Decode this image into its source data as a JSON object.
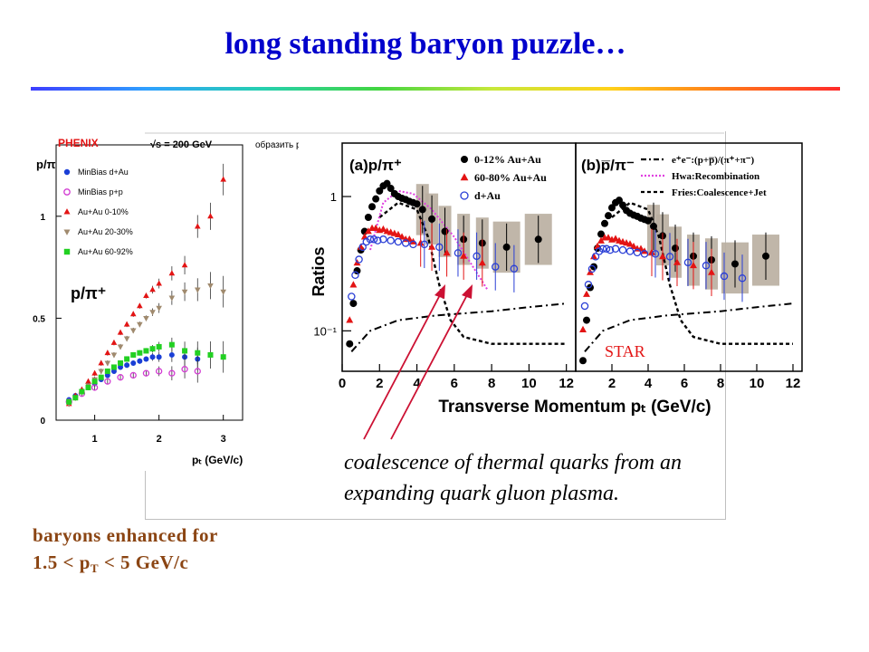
{
  "slide": {
    "title": "long standing baryon puzzle…",
    "caption_line1": "coalescence of thermal quarks from an",
    "caption_line2": "expanding quark gluon plasma.",
    "conclusion_line1": "baryons enhanced for",
    "conclusion_line2_a": "1.5 < p",
    "conclusion_line2_sub": "T",
    "conclusion_line2_b": " <  5 GeV/c",
    "overlay_text": "√s = 200 GeV",
    "overlay_fragment": "образить р"
  },
  "chart_data": [
    {
      "type": "scatter",
      "experiment": "PHENIX",
      "ylabel": "p/π",
      "xlabel": "pₜ (GeV/c)",
      "annotation": "p/π⁺",
      "xlim": [
        0.4,
        3.3
      ],
      "ylim": [
        0,
        1.35
      ],
      "xticks": [
        1,
        2,
        3
      ],
      "yticks": [
        0,
        0.5,
        1
      ],
      "ytick_labels": [
        "0",
        "0.5",
        "1"
      ],
      "legend_position": "top-left",
      "series": [
        {
          "name": "MinBias d+Au",
          "color": "#1a3fd6",
          "marker": "circle",
          "x": [
            0.6,
            0.7,
            0.8,
            0.9,
            1.0,
            1.1,
            1.2,
            1.3,
            1.4,
            1.5,
            1.6,
            1.7,
            1.8,
            1.9,
            2.0,
            2.2,
            2.4,
            2.6
          ],
          "y": [
            0.1,
            0.12,
            0.14,
            0.16,
            0.18,
            0.2,
            0.22,
            0.24,
            0.26,
            0.27,
            0.28,
            0.29,
            0.3,
            0.31,
            0.31,
            0.32,
            0.31,
            0.3
          ]
        },
        {
          "name": "MinBias p+p",
          "color": "#d23bd2",
          "marker": "open-circle",
          "x": [
            0.6,
            0.8,
            1.0,
            1.2,
            1.4,
            1.6,
            1.8,
            2.0,
            2.2,
            2.4,
            2.6
          ],
          "y": [
            0.09,
            0.13,
            0.16,
            0.19,
            0.21,
            0.22,
            0.23,
            0.24,
            0.23,
            0.25,
            0.24
          ]
        },
        {
          "name": "Au+Au  0-10%",
          "color": "#e31414",
          "marker": "triangle",
          "x": [
            0.6,
            0.7,
            0.8,
            0.9,
            1.0,
            1.1,
            1.2,
            1.3,
            1.4,
            1.5,
            1.6,
            1.7,
            1.8,
            1.9,
            2.0,
            2.2,
            2.4,
            2.6,
            2.8,
            3.0
          ],
          "y": [
            0.08,
            0.12,
            0.15,
            0.19,
            0.23,
            0.28,
            0.33,
            0.38,
            0.43,
            0.47,
            0.52,
            0.56,
            0.61,
            0.64,
            0.67,
            0.72,
            0.76,
            0.95,
            1.0,
            1.18
          ]
        },
        {
          "name": "Au+Au 20-30%",
          "color": "#a08a6e",
          "marker": "triangle-down",
          "x": [
            0.6,
            0.7,
            0.8,
            0.9,
            1.0,
            1.1,
            1.2,
            1.3,
            1.4,
            1.5,
            1.6,
            1.7,
            1.8,
            1.9,
            2.0,
            2.2,
            2.4,
            2.6,
            2.8,
            3.0
          ],
          "y": [
            0.08,
            0.11,
            0.14,
            0.17,
            0.2,
            0.24,
            0.28,
            0.32,
            0.36,
            0.4,
            0.44,
            0.47,
            0.5,
            0.53,
            0.55,
            0.6,
            0.63,
            0.64,
            0.66,
            0.63
          ]
        },
        {
          "name": "Au+Au 60-92%",
          "color": "#22d022",
          "marker": "square",
          "x": [
            0.6,
            0.7,
            0.8,
            0.9,
            1.0,
            1.1,
            1.2,
            1.3,
            1.4,
            1.5,
            1.6,
            1.7,
            1.8,
            1.9,
            2.0,
            2.2,
            2.4,
            2.6,
            2.8,
            3.0
          ],
          "y": [
            0.09,
            0.11,
            0.14,
            0.16,
            0.19,
            0.21,
            0.24,
            0.26,
            0.28,
            0.3,
            0.32,
            0.33,
            0.34,
            0.35,
            0.36,
            0.37,
            0.34,
            0.33,
            0.32,
            0.31
          ]
        }
      ]
    },
    {
      "type": "scatter",
      "experiment": "STAR",
      "ylabel": "Ratios",
      "xlabel": "Transverse Momentum pₜ (GeV/c)",
      "yscale": "log",
      "ylim": [
        0.05,
        2.5
      ],
      "xlim": [
        0,
        12.5
      ],
      "yticks": [
        0.1,
        1
      ],
      "ytick_labels": [
        "10⁻¹",
        "1"
      ],
      "xticks": [
        0,
        2,
        4,
        6,
        8,
        10,
        12
      ],
      "legend_position": "top-right",
      "panels": [
        {
          "label": "(a)p/π⁺",
          "series": [
            {
              "name": "0-12% Au+Au",
              "color": "#000000",
              "marker": "circle",
              "x": [
                0.4,
                0.6,
                0.8,
                1.0,
                1.2,
                1.4,
                1.6,
                1.8,
                2.0,
                2.2,
                2.4,
                2.6,
                2.8,
                3.0,
                3.2,
                3.4,
                3.6,
                3.8,
                4.0,
                4.3,
                4.8,
                5.5,
                6.5,
                7.5,
                8.8,
                10.5
              ],
              "y": [
                0.08,
                0.16,
                0.28,
                0.4,
                0.55,
                0.7,
                0.84,
                0.96,
                1.1,
                1.2,
                1.25,
                1.15,
                1.05,
                1.0,
                0.97,
                0.95,
                0.92,
                0.9,
                0.88,
                0.8,
                0.68,
                0.55,
                0.48,
                0.45,
                0.42,
                0.48
              ]
            },
            {
              "name": "60-80% Au+Au",
              "color": "#e31414",
              "marker": "triangle",
              "x": [
                0.4,
                0.6,
                0.8,
                1.0,
                1.2,
                1.4,
                1.6,
                1.8,
                2.0,
                2.2,
                2.4,
                2.6,
                2.8,
                3.0,
                3.2,
                3.4,
                3.6,
                3.8,
                4.2,
                4.8,
                5.6,
                6.5,
                7.5
              ],
              "y": [
                0.12,
                0.22,
                0.32,
                0.42,
                0.5,
                0.55,
                0.58,
                0.58,
                0.56,
                0.57,
                0.55,
                0.54,
                0.53,
                0.52,
                0.5,
                0.48,
                0.48,
                0.46,
                0.45,
                0.42,
                0.38,
                0.36,
                0.32
              ]
            },
            {
              "name": "d+Au",
              "color": "#2a3fd6",
              "marker": "open-circle",
              "x": [
                0.5,
                0.7,
                0.9,
                1.1,
                1.3,
                1.5,
                1.7,
                1.9,
                2.2,
                2.6,
                3.0,
                3.4,
                3.8,
                4.4,
                5.2,
                6.2,
                7.2,
                8.2,
                9.2
              ],
              "y": [
                0.18,
                0.26,
                0.34,
                0.42,
                0.46,
                0.48,
                0.48,
                0.47,
                0.48,
                0.47,
                0.46,
                0.45,
                0.44,
                0.44,
                0.42,
                0.38,
                0.36,
                0.3,
                0.29
              ]
            }
          ]
        },
        {
          "label": "(b)p̅/π⁻",
          "series": [
            {
              "name": "e⁺e⁻:(p+p̅)/(π⁺+π⁻)",
              "color": "#000000",
              "marker": "dashdot-line"
            },
            {
              "name": "Hwa:Recombination",
              "color": "#e040e0",
              "marker": "dotted-line"
            },
            {
              "name": "Fries:Coalescence+Jet",
              "color": "#000000",
              "marker": "dashed-line"
            }
          ]
        }
      ],
      "annotation": "STAR"
    }
  ]
}
